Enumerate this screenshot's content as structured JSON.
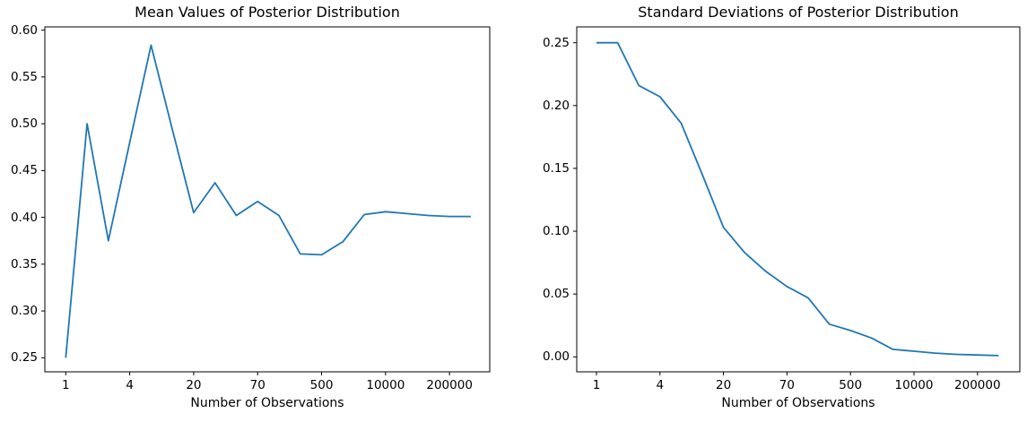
{
  "figure": {
    "background_color": "#ffffff",
    "text_color": "#000000"
  },
  "chart_data": [
    {
      "type": "line",
      "title": "Mean Values of Posterior Distribution",
      "xlabel": "Number of Observations",
      "ylabel": "",
      "grid": false,
      "legend": null,
      "line_color": "#1f77b4",
      "n_points": 20,
      "x_tick_labels": [
        "1",
        "4",
        "20",
        "70",
        "500",
        "10000",
        "200000"
      ],
      "x_tick_indices": [
        0,
        3,
        6,
        9,
        12,
        15,
        18
      ],
      "y_tick_labels": [
        "0.25",
        "0.30",
        "0.35",
        "0.40",
        "0.45",
        "0.50",
        "0.55",
        "0.60"
      ],
      "y_tick_values": [
        0.25,
        0.3,
        0.35,
        0.4,
        0.45,
        0.5,
        0.55,
        0.6
      ],
      "ylim": [
        0.235,
        0.6035
      ],
      "values": [
        0.25,
        0.5,
        0.375,
        0.48,
        0.584,
        0.494,
        0.405,
        0.437,
        0.402,
        0.417,
        0.402,
        0.361,
        0.36,
        0.374,
        0.403,
        0.406,
        0.404,
        0.402,
        0.401,
        0.401
      ]
    },
    {
      "type": "line",
      "title": "Standard Deviations of Posterior Distribution",
      "xlabel": "Number of Observations",
      "ylabel": "",
      "grid": false,
      "legend": null,
      "line_color": "#1f77b4",
      "n_points": 20,
      "x_tick_labels": [
        "1",
        "4",
        "20",
        "70",
        "500",
        "10000",
        "200000"
      ],
      "x_tick_indices": [
        0,
        3,
        6,
        9,
        12,
        15,
        18
      ],
      "y_tick_labels": [
        "0.00",
        "0.05",
        "0.10",
        "0.15",
        "0.20",
        "0.25"
      ],
      "y_tick_values": [
        0.0,
        0.05,
        0.1,
        0.15,
        0.2,
        0.25
      ],
      "ylim": [
        -0.0119,
        0.2626
      ],
      "values": [
        0.25,
        0.25,
        0.216,
        0.207,
        0.186,
        0.145,
        0.103,
        0.083,
        0.068,
        0.056,
        0.047,
        0.026,
        0.021,
        0.015,
        0.006,
        0.0045,
        0.003,
        0.002,
        0.0015,
        0.001
      ]
    }
  ]
}
